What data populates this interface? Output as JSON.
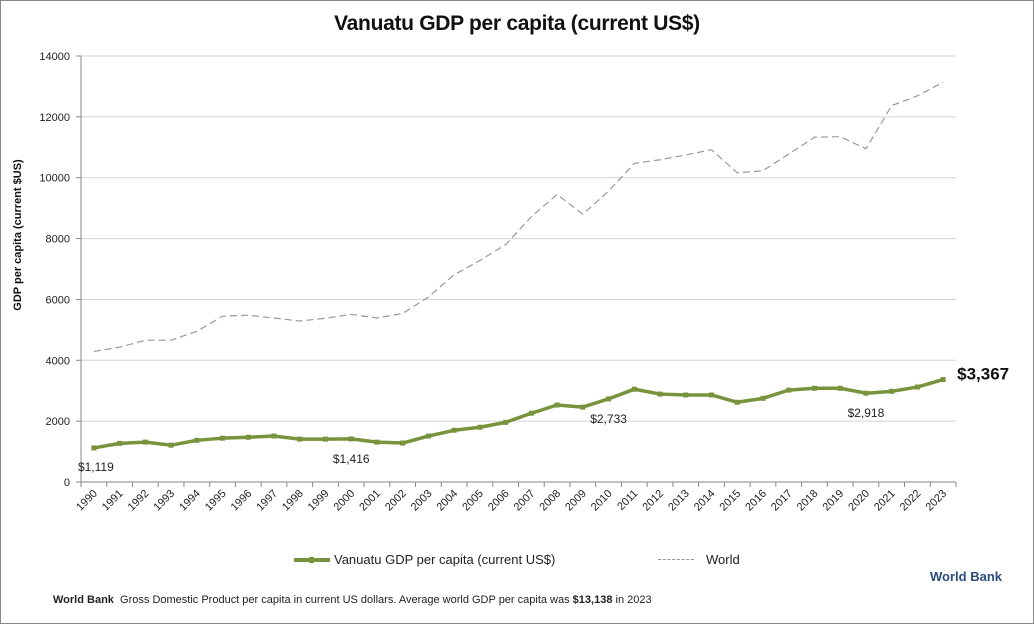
{
  "chart_data": {
    "type": "line",
    "title": "Vanuatu GDP per capita (current US$)",
    "xlabel": "",
    "ylabel": "GDP per capita (current $US)",
    "ylim": [
      0,
      14000
    ],
    "yticks": [
      0,
      2000,
      4000,
      6000,
      8000,
      10000,
      12000,
      14000
    ],
    "grid": true,
    "legend_position": "bottom",
    "x": [
      "1990",
      "1991",
      "1992",
      "1993",
      "1994",
      "1995",
      "1996",
      "1997",
      "1998",
      "1999",
      "2000",
      "2001",
      "2002",
      "2003",
      "2004",
      "2005",
      "2006",
      "2007",
      "2008",
      "2009",
      "2010",
      "2011",
      "2012",
      "2013",
      "2014",
      "2015",
      "2016",
      "2017",
      "2018",
      "2019",
      "2020",
      "2021",
      "2022",
      "2023"
    ],
    "series": [
      {
        "name": "Vanuatu GDP per capita (current US$)",
        "color": "#77933c",
        "style": "solid-markers",
        "values": [
          1119,
          1270,
          1310,
          1210,
          1370,
          1440,
          1470,
          1510,
          1410,
          1410,
          1416,
          1310,
          1280,
          1510,
          1700,
          1800,
          1960,
          2260,
          2530,
          2460,
          2733,
          3050,
          2890,
          2860,
          2860,
          2620,
          2750,
          3020,
          3080,
          3080,
          2918,
          2980,
          3120,
          3367
        ]
      },
      {
        "name": "World",
        "color": "#999999",
        "style": "dashed",
        "values": [
          4290,
          4430,
          4660,
          4660,
          4950,
          5450,
          5480,
          5390,
          5290,
          5380,
          5510,
          5390,
          5540,
          6080,
          6810,
          7280,
          7800,
          8720,
          9450,
          8800,
          9560,
          10470,
          10590,
          10750,
          10920,
          10160,
          10230,
          10780,
          11330,
          11350,
          10950,
          12370,
          12690,
          13138
        ]
      }
    ],
    "annotations": [
      {
        "year": "1990",
        "text": "$1,119"
      },
      {
        "year": "2000",
        "text": "$1,416"
      },
      {
        "year": "2010",
        "text": "$2,733"
      },
      {
        "year": "2020",
        "text": "$2,918"
      },
      {
        "year": "2023",
        "text": "$3,367",
        "emphasis": true
      }
    ]
  },
  "legend": {
    "vanuatu_label": "Vanuatu GDP per capita (current US$)",
    "world_label": "World"
  },
  "brand": "World Bank",
  "footnote": {
    "source": "World Bank",
    "text": "Gross Domestic Product per capita in current US dollars.   Average world GDP per capita was ",
    "highlight": "$13,138",
    "suffix": " in 2023"
  }
}
